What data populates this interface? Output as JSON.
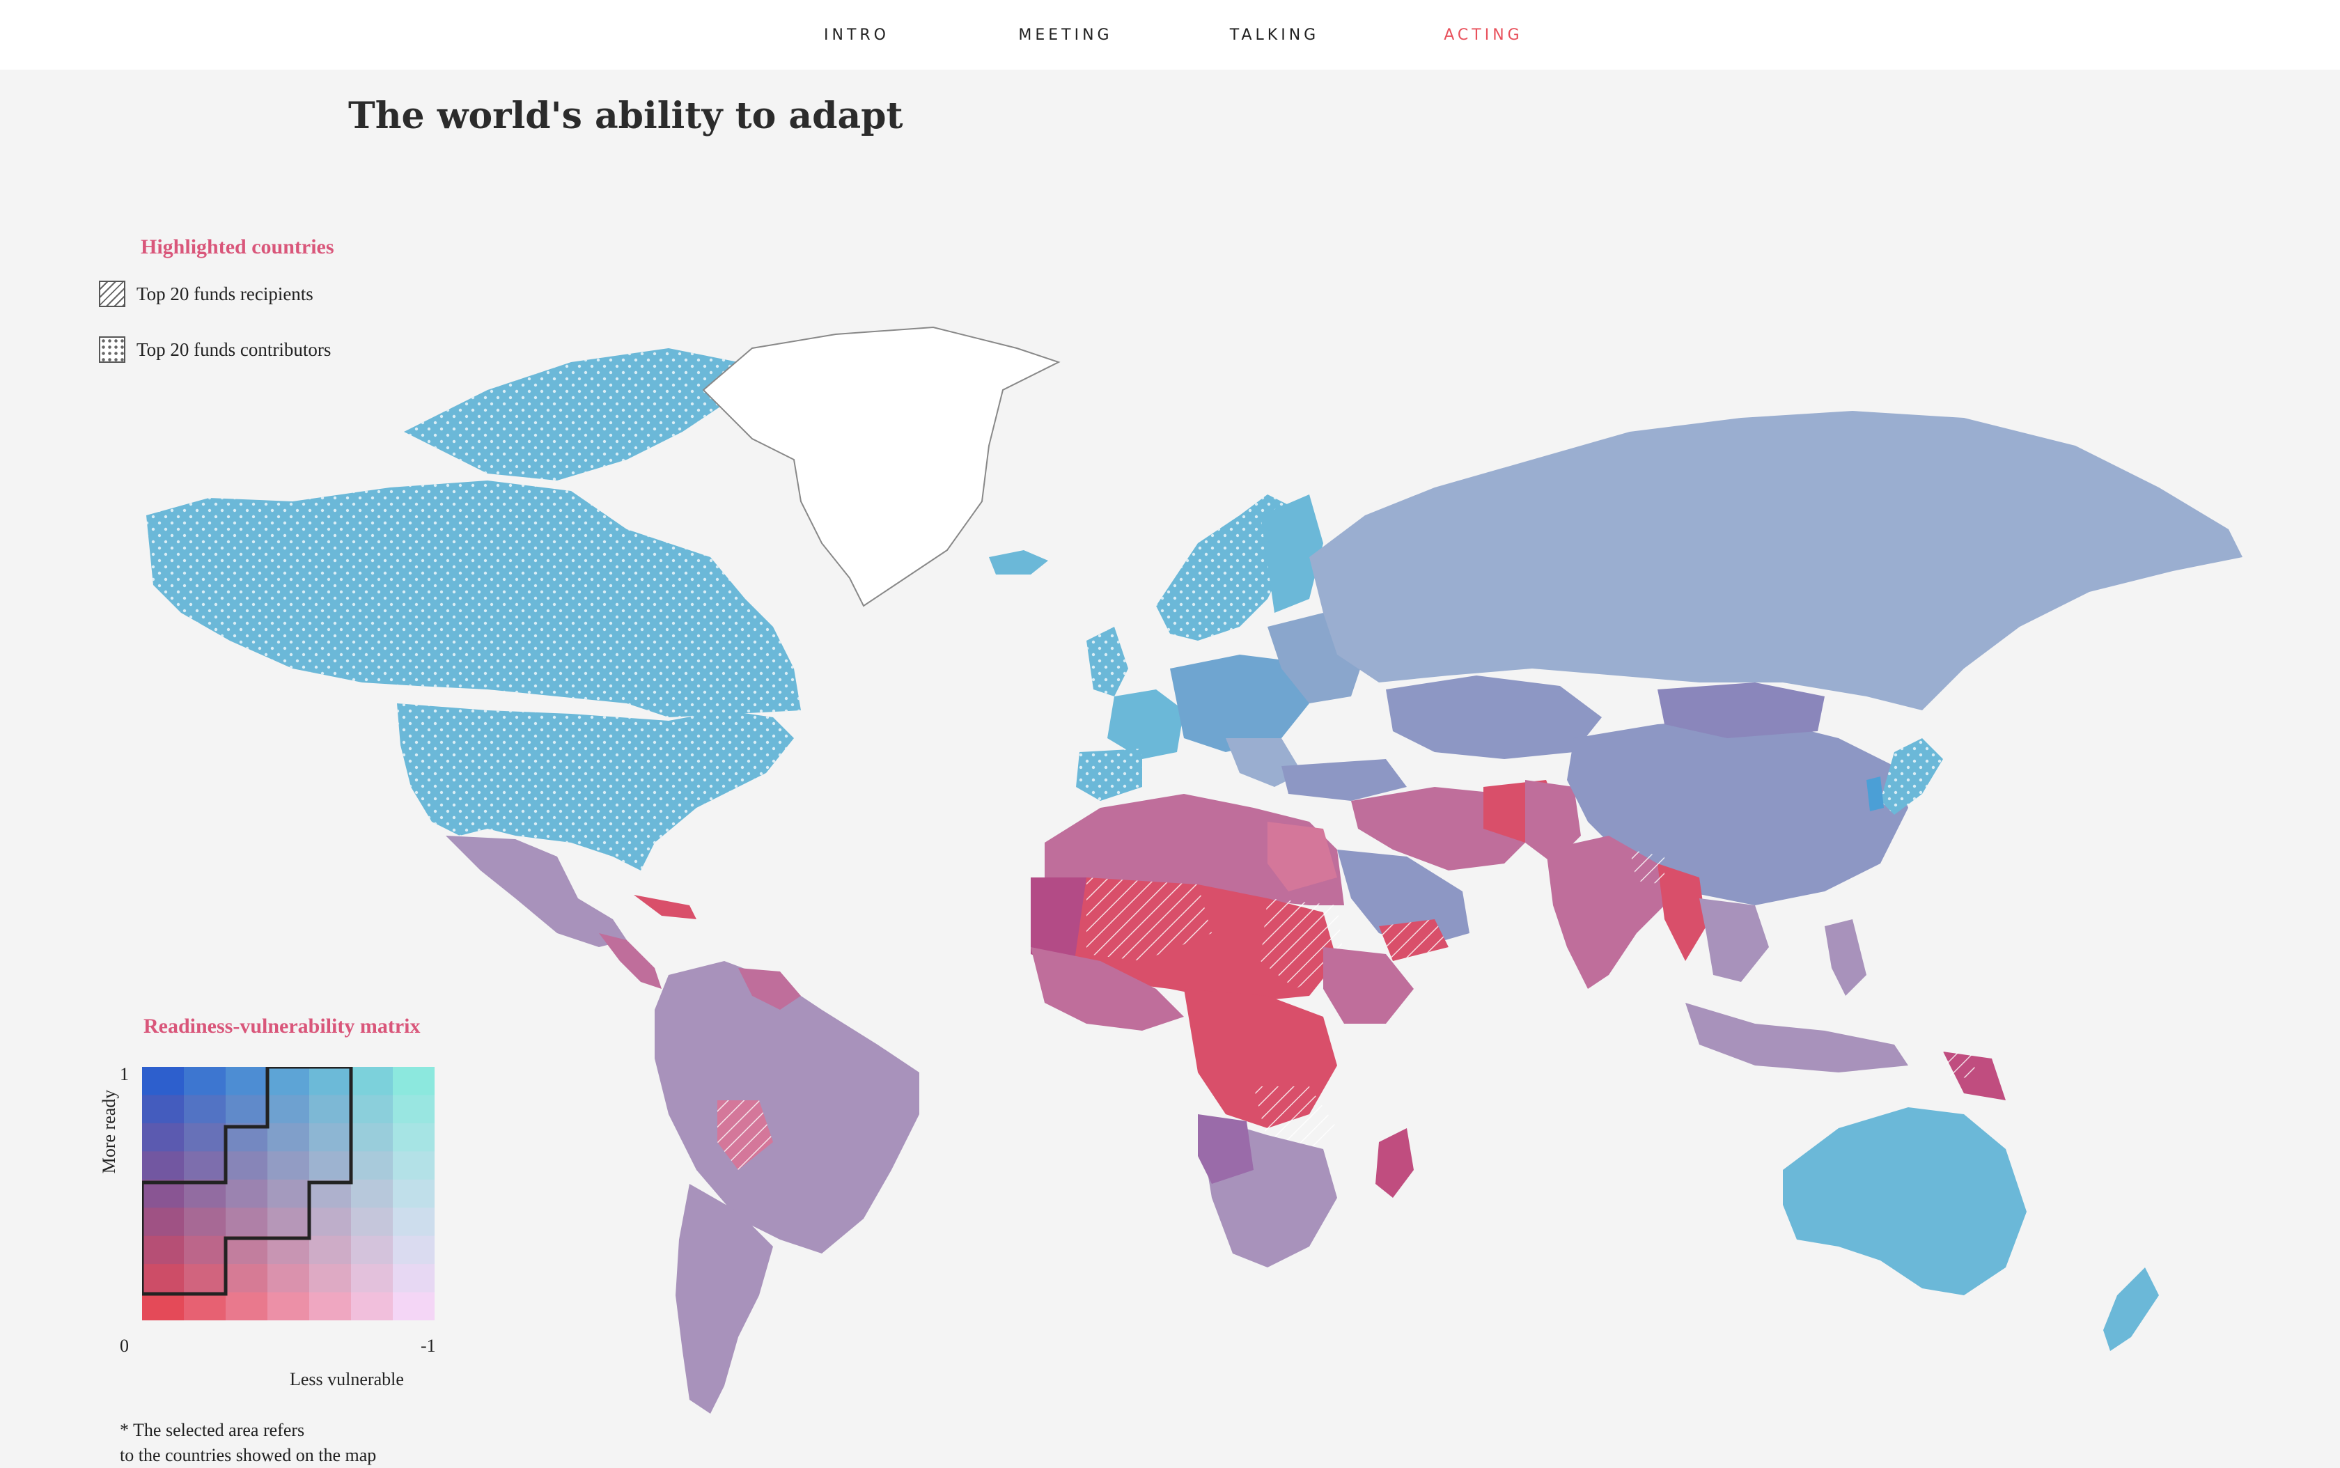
{
  "nav": {
    "items": [
      "INTRO",
      "MEETING",
      "TALKING",
      "ACTING"
    ],
    "active": "ACTING"
  },
  "title": "The world's ability to adapt",
  "legend": {
    "title": "Highlighted countries",
    "recipients_label": "Top 20 funds recipients",
    "contributors_label": "Top 20 funds contributors"
  },
  "matrix": {
    "title": "Readiness-vulnerability matrix",
    "y_axis_label": "More ready",
    "y_top_tick": "1",
    "x_left_tick": "0",
    "x_right_tick": "-1",
    "x_axis_label": "Less vulnerable",
    "note_line1": "* The selected area refers",
    "note_line2": "to the countries showed on the map"
  },
  "colors": {
    "accent": "#e8505b",
    "highlight_title": "#d9567a",
    "ready_low_vulnerability": "#6bb8d8",
    "ready_mid": "#9aaed0",
    "mid": "#a892bb",
    "vulnerable_mid": "#bf6e9b",
    "vulnerable_high": "#d94f6a",
    "unselected_land": "#ffffff"
  }
}
